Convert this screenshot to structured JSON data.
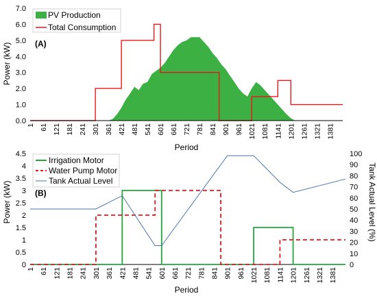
{
  "chart_data": [
    {
      "type": "area",
      "panel_label": "(A)",
      "title": "",
      "xlabel": "Period",
      "ylabel": "Power (kW)",
      "ylim": [
        0,
        7
      ],
      "yticks": [
        "0.0",
        "1.0",
        "2.0",
        "3.0",
        "4.0",
        "5.0",
        "6.0",
        "7.0"
      ],
      "xlim": [
        1,
        1440
      ],
      "xticks": [
        1,
        61,
        121,
        181,
        241,
        301,
        361,
        421,
        481,
        541,
        601,
        661,
        721,
        781,
        841,
        901,
        961,
        1021,
        1081,
        1141,
        1201,
        1261,
        1321,
        1381
      ],
      "grid": false,
      "legend": "top-left",
      "colors": {
        "pv": "#3cb043",
        "consumption": "#e8161b"
      },
      "series": [
        {
          "name": "PV Production",
          "kind": "area",
          "x": [
            361,
            381,
            401,
            421,
            441,
            461,
            481,
            501,
            521,
            541,
            561,
            581,
            601,
            621,
            641,
            661,
            681,
            701,
            721,
            741,
            761,
            781,
            801,
            821,
            841,
            861,
            881,
            901,
            921,
            941,
            961,
            981,
            1001,
            1021,
            1041,
            1061,
            1081,
            1101,
            1121,
            1141,
            1161,
            1181,
            1201,
            1221
          ],
          "y": [
            0,
            0.1,
            0.4,
            0.8,
            1.3,
            1.7,
            2.1,
            1.9,
            2.3,
            2.4,
            2.9,
            3.1,
            3.3,
            3.6,
            4.0,
            4.4,
            4.7,
            4.9,
            5.0,
            5.2,
            5.2,
            5.2,
            4.9,
            4.6,
            4.2,
            3.9,
            3.5,
            3.2,
            2.8,
            2.4,
            2.0,
            1.7,
            1.5,
            2.0,
            2.4,
            2.2,
            1.9,
            1.6,
            1.3,
            1.0,
            0.7,
            0.4,
            0.15,
            0
          ]
        },
        {
          "name": "Total Consumption",
          "kind": "step",
          "x": [
            1,
            301,
            301,
            421,
            421,
            571,
            571,
            601,
            601,
            871,
            871,
            1021,
            1021,
            1141,
            1141,
            1171,
            1171,
            1201,
            1201,
            1440
          ],
          "y": [
            0,
            0,
            2,
            2,
            5,
            5,
            6,
            6,
            3,
            3,
            0,
            0,
            1.5,
            1.5,
            2.5,
            2.5,
            2.5,
            2.5,
            1,
            1
          ]
        }
      ]
    },
    {
      "type": "line",
      "panel_label": "(B)",
      "title": "",
      "xlabel": "Period",
      "ylabel": "Power (kW)",
      "y2label": "Tank Actual Level (%)",
      "ylim": [
        0,
        4.5
      ],
      "yticks": [
        "0",
        "0.5",
        "1",
        "1.5",
        "2",
        "2.5",
        "3",
        "3.5",
        "4",
        "4.5"
      ],
      "y2lim": [
        0,
        100
      ],
      "y2ticks": [
        "0",
        "10",
        "20",
        "30",
        "40",
        "50",
        "60",
        "70",
        "80",
        "90",
        "100"
      ],
      "xlim": [
        1,
        1440
      ],
      "xticks": [
        1,
        61,
        121,
        181,
        241,
        301,
        361,
        421,
        481,
        541,
        601,
        661,
        721,
        781,
        841,
        901,
        961,
        1021,
        1081,
        1141,
        1201,
        1261,
        1321,
        1381
      ],
      "grid": false,
      "legend": "top-left",
      "colors": {
        "irrigation": "#22a83a",
        "pump": "#e8161b",
        "tank": "#4a72b0"
      },
      "series": [
        {
          "name": "Irrigation Motor",
          "axis": "left",
          "x": [
            1,
            421,
            421,
            601,
            601,
            1021,
            1021,
            1201,
            1201,
            1440
          ],
          "y": [
            0,
            0,
            3,
            3,
            0,
            0,
            1.5,
            1.5,
            0,
            0
          ]
        },
        {
          "name": "Water Pump Motor",
          "axis": "left",
          "x": [
            1,
            301,
            301,
            571,
            571,
            871,
            871,
            1141,
            1141,
            1440
          ],
          "y": [
            0,
            0,
            2,
            2,
            3,
            3,
            0,
            0,
            1,
            1
          ]
        },
        {
          "name": "Tank Actual Level",
          "axis": "right",
          "x": [
            1,
            301,
            421,
            571,
            601,
            901,
            1021,
            1141,
            1201,
            1440
          ],
          "y": [
            50,
            50,
            62,
            17,
            17,
            98,
            98,
            74,
            65,
            77
          ]
        }
      ]
    }
  ]
}
